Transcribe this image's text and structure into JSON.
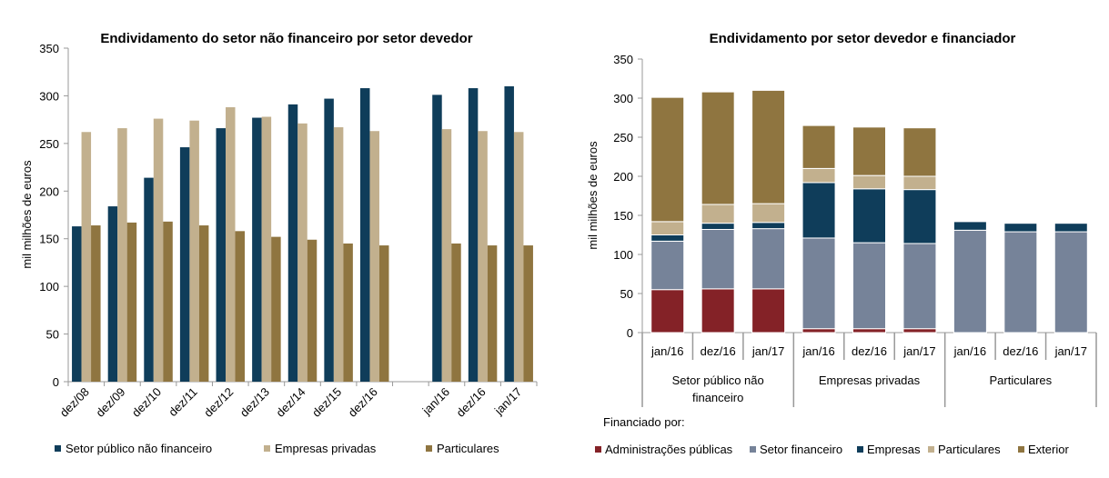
{
  "colors": {
    "navy": "#0f3d5a",
    "beige": "#c2b08e",
    "brown": "#8f7540",
    "red": "#842227",
    "slate": "#768399",
    "axis": "#999999"
  },
  "chart_data": [
    {
      "type": "bar",
      "title": "Endividamento do setor não financeiro por setor devedor",
      "ylabel": "mil milhões de euros",
      "xlabel": "",
      "ylim": [
        0,
        350
      ],
      "yticks": [
        "0",
        "50",
        "100",
        "150",
        "200",
        "250",
        "300",
        "350"
      ],
      "categories": [
        "dez/08",
        "dez/09",
        "dez/10",
        "dez/11",
        "dez/12",
        "dez/13",
        "dez/14",
        "dez/15",
        "dez/16",
        "",
        "jan/16",
        "dez/16",
        "jan/17"
      ],
      "series": [
        {
          "name": "Setor público não financeiro",
          "color": "#0f3d5a",
          "values": [
            163,
            184,
            214,
            246,
            266,
            277,
            291,
            297,
            308,
            null,
            301,
            308,
            310
          ]
        },
        {
          "name": "Empresas privadas",
          "color": "#c2b08e",
          "values": [
            262,
            266,
            276,
            274,
            288,
            278,
            271,
            267,
            263,
            null,
            265,
            263,
            262
          ]
        },
        {
          "name": "Particulares",
          "color": "#8f7540",
          "values": [
            164,
            167,
            168,
            164,
            158,
            152,
            149,
            145,
            143,
            null,
            145,
            143,
            143
          ]
        }
      ],
      "legend": "bottom"
    },
    {
      "type": "bar",
      "stacked": true,
      "title": "Endividamento por setor devedor e financiador",
      "ylabel": "mil milhões de euros",
      "ylim": [
        0,
        350
      ],
      "yticks": [
        "0",
        "50",
        "100",
        "150",
        "200",
        "250",
        "300",
        "350"
      ],
      "categories": [
        "jan/16",
        "dez/16",
        "jan/17",
        "jan/16",
        "dez/16",
        "jan/17",
        "jan/16",
        "dez/16",
        "jan/17"
      ],
      "groups": [
        {
          "label_lines": [
            "Setor público não",
            "financeiro"
          ],
          "count": 3
        },
        {
          "label_lines": [
            "Empresas privadas"
          ],
          "count": 3
        },
        {
          "label_lines": [
            "Particulares"
          ],
          "count": 3
        }
      ],
      "legend_title": "Financiado por:",
      "series": [
        {
          "name": "Administrações públicas",
          "color": "#842227",
          "values": [
            55,
            56,
            56,
            5,
            5,
            5,
            0,
            0,
            0
          ]
        },
        {
          "name": "Setor financeiro",
          "color": "#768399",
          "values": [
            62,
            76,
            77,
            116,
            110,
            109,
            131,
            129,
            129
          ]
        },
        {
          "name": "Empresas",
          "color": "#0f3d5a",
          "values": [
            8,
            8,
            8,
            71,
            69,
            69,
            11,
            11,
            11
          ]
        },
        {
          "name": "Particulares",
          "color": "#c2b08e",
          "values": [
            17,
            24,
            24,
            18,
            17,
            17,
            0,
            1,
            1
          ]
        },
        {
          "name": "Exterior",
          "color": "#8f7540",
          "values": [
            159,
            144,
            145,
            55,
            62,
            62,
            0,
            0,
            0
          ]
        }
      ],
      "legend": "bottom"
    }
  ]
}
